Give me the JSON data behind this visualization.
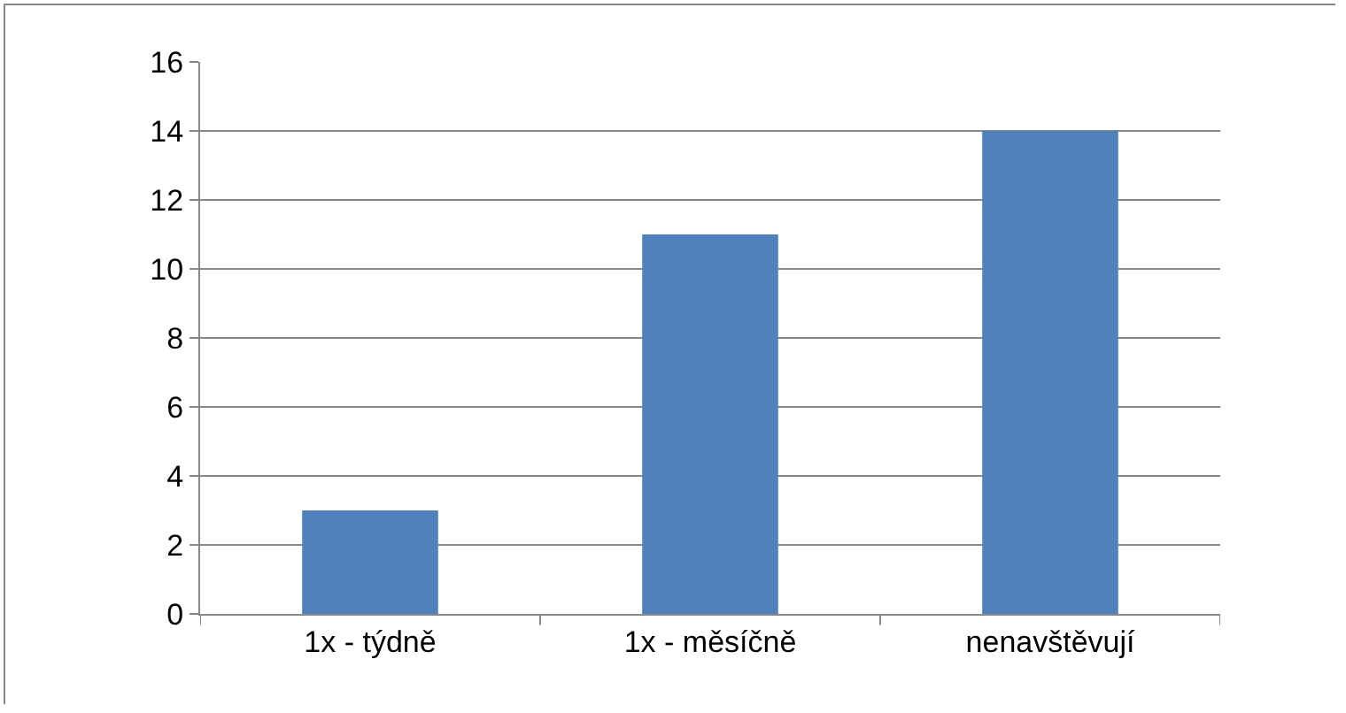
{
  "chart_data": {
    "type": "bar",
    "categories": [
      "1x - týdně",
      "1x - měsíčně",
      "nenavštěvují"
    ],
    "values": [
      3,
      11,
      14
    ],
    "color": "#4f81bd",
    "ylim": [
      0,
      16
    ],
    "yticks": [
      0,
      2,
      4,
      6,
      8,
      10,
      12,
      14,
      16
    ],
    "grid": "y"
  }
}
